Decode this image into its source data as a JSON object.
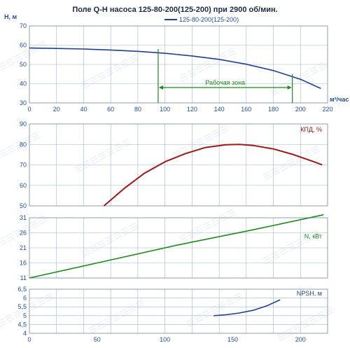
{
  "title": "Поле Q-H насоса 125-80-200(125-200) при 2900 об/мин.",
  "colors": {
    "axis_text": "#1f4e9a",
    "grid": "#9fb5cf",
    "qh": "#1f3f99",
    "eff": "#a01818",
    "power": "#1f8a1f",
    "npsh": "#1f3f99",
    "zone": "#1f8a1f"
  },
  "chart_data": [
    {
      "id": "qh",
      "type": "line",
      "ylabel": "H, м",
      "xlabel": "м³/час",
      "xlim": [
        0,
        220
      ],
      "ylim": [
        30,
        70
      ],
      "xticks": [
        0,
        20,
        40,
        60,
        80,
        100,
        120,
        140,
        160,
        180,
        200,
        220
      ],
      "yticks": [
        30,
        40,
        50,
        60,
        70
      ],
      "legend": "top-right",
      "series": [
        {
          "name": "125-80-200(125-200)",
          "x": [
            0,
            20,
            40,
            60,
            80,
            100,
            120,
            140,
            160,
            180,
            200,
            215
          ],
          "y": [
            58.5,
            58.3,
            58.0,
            57.5,
            56.8,
            55.8,
            54.4,
            52.6,
            50.1,
            46.8,
            42.3,
            37.5
          ]
        }
      ],
      "work_zone": {
        "label": "Рабочая зона",
        "from": 95,
        "to": 194
      }
    },
    {
      "id": "eff",
      "type": "line",
      "series_label": "КПД, %",
      "xlim": [
        0,
        220
      ],
      "ylim": [
        50,
        90
      ],
      "yticks": [
        50,
        60,
        70,
        80,
        90
      ],
      "series": [
        {
          "x": [
            55,
            70,
            85,
            100,
            115,
            130,
            145,
            155,
            165,
            180,
            195,
            210,
            216
          ],
          "y": [
            50,
            58.5,
            66,
            71.5,
            75.5,
            78.5,
            79.8,
            80,
            79.5,
            77.8,
            75,
            71.5,
            70
          ]
        }
      ]
    },
    {
      "id": "power",
      "type": "line",
      "series_label": "N, кВт",
      "xlim": [
        0,
        220
      ],
      "ylim": [
        11,
        31
      ],
      "yticks": [
        11,
        16,
        21,
        26,
        31
      ],
      "series": [
        {
          "x": [
            0,
            55,
            110,
            165,
            217
          ],
          "y": [
            11,
            16.5,
            22,
            27,
            32
          ]
        }
      ]
    },
    {
      "id": "npsh",
      "type": "line",
      "series_label": "NPSH, м",
      "xlim": [
        0,
        220
      ],
      "xticks": [
        0,
        50,
        100,
        150,
        200
      ],
      "ylim": [
        4,
        6.5
      ],
      "yticks": [
        4,
        4.5,
        5,
        5.5,
        6,
        6.5
      ],
      "series": [
        {
          "x": [
            136,
            145,
            155,
            165,
            175,
            185
          ],
          "y": [
            5.0,
            5.05,
            5.15,
            5.3,
            5.55,
            5.9
          ]
        }
      ]
    }
  ]
}
